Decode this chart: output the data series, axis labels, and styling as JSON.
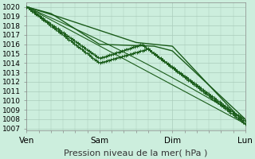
{
  "title": "",
  "xlabel": "Pression niveau de la mer( hPa )",
  "ylabel": "",
  "background_color": "#cceedd",
  "grid_color": "#aaccbb",
  "line_color": "#1a5c1a",
  "xlim": [
    0,
    72
  ],
  "ylim": [
    1006.8,
    1020.5
  ],
  "yticks": [
    1007,
    1008,
    1009,
    1010,
    1011,
    1012,
    1013,
    1014,
    1015,
    1016,
    1017,
    1018,
    1019,
    1020
  ],
  "xtick_positions": [
    0,
    24,
    48,
    72
  ],
  "xtick_labels": [
    "Ven",
    "Sam",
    "Dim",
    "Lun"
  ],
  "xlabel_fontsize": 8,
  "ytick_fontsize": 6.5,
  "xtick_fontsize": 7.5
}
